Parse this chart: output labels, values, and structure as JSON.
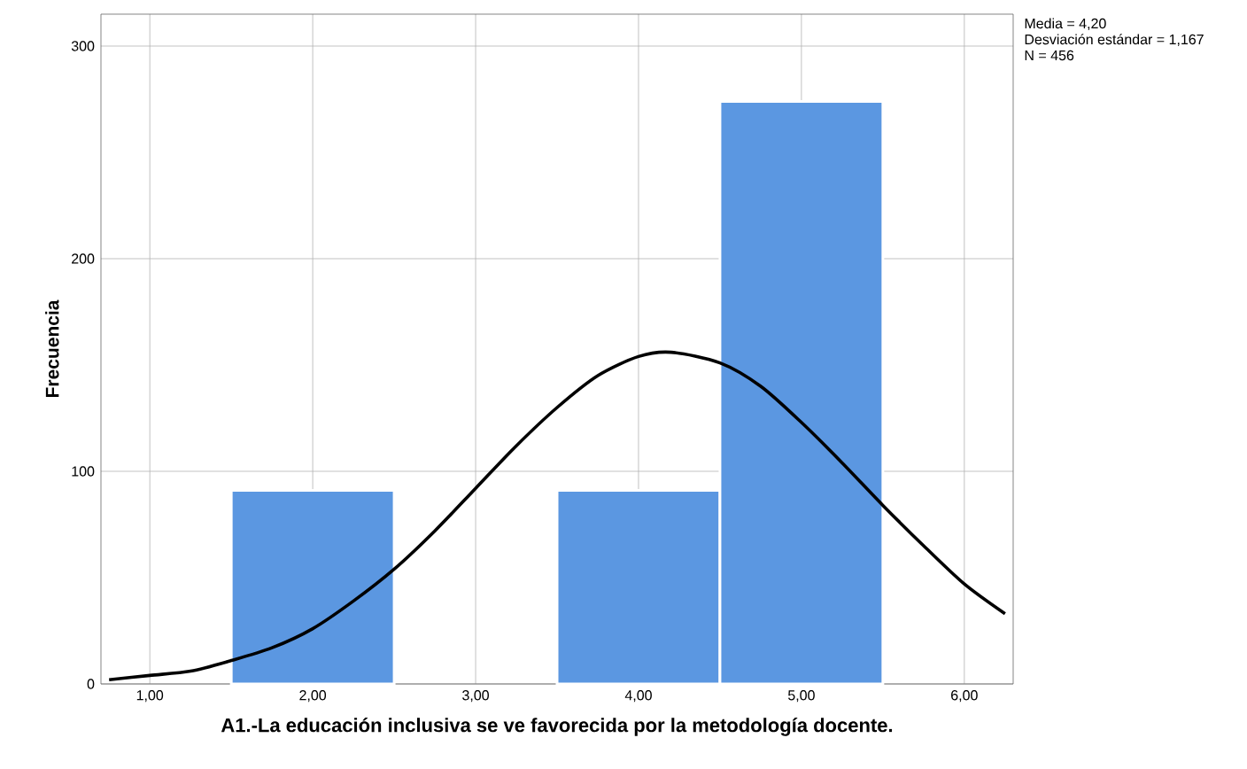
{
  "chart_data": {
    "type": "histogram",
    "xlabel": "A1.-La educación inclusiva se ve favorecida por la metodología docente.",
    "ylabel": "Frecuencia",
    "bins": [
      1.5,
      2.5,
      3.5,
      4.5,
      5.5
    ],
    "values": [
      91,
      0,
      91,
      274
    ],
    "color": "#5b97e1",
    "series": [
      {
        "type": "line",
        "color": "#000000",
        "x": [
          0.75,
          1.0,
          1.25,
          1.5,
          1.75,
          2.0,
          2.25,
          2.5,
          2.75,
          3.0,
          3.25,
          3.5,
          3.75,
          4.0,
          4.2,
          4.5,
          4.75,
          5.0,
          5.25,
          5.5,
          5.75,
          6.0,
          6.25
        ],
        "values": [
          2,
          4,
          6,
          11,
          17,
          26,
          39,
          54,
          72,
          92,
          112,
          130,
          145,
          154,
          156,
          151,
          140,
          123,
          104,
          84,
          65,
          47,
          33
        ]
      }
    ],
    "xlim": [
      0.7,
      6.3
    ],
    "ylim": [
      0,
      315
    ],
    "xticks": [
      {
        "value": 1,
        "label": "1,00"
      },
      {
        "value": 2,
        "label": "2,00"
      },
      {
        "value": 3,
        "label": "3,00"
      },
      {
        "value": 4,
        "label": "4,00"
      },
      {
        "value": 5,
        "label": "5,00"
      },
      {
        "value": 6,
        "label": "6,00"
      }
    ],
    "yticks": [
      0,
      100,
      200,
      300
    ],
    "grid": true,
    "annotations": [
      "Media = 4,20",
      "Desviación estándar = 1,167",
      "N = 456"
    ]
  }
}
